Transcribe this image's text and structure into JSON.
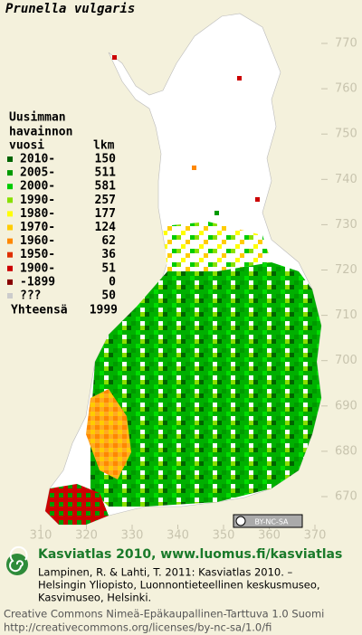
{
  "title": "Prunella vulgaris",
  "map": {
    "yticks": [
      770,
      760,
      750,
      740,
      730,
      720,
      710,
      700,
      690,
      680,
      670
    ],
    "xticks": [
      310,
      320,
      330,
      340,
      350,
      360,
      370
    ],
    "license_badge": "BY-NC-SA"
  },
  "legend": {
    "heading": [
      "Uusimman",
      "havainnon",
      "vuosi"
    ],
    "count_heading": "lkm",
    "rows": [
      {
        "label": "2010-",
        "count": 150,
        "color": "#006400"
      },
      {
        "label": "2005-",
        "count": 511,
        "color": "#009a00"
      },
      {
        "label": "2000-",
        "count": 581,
        "color": "#00cc00"
      },
      {
        "label": "1990-",
        "count": 257,
        "color": "#88e000"
      },
      {
        "label": "1980-",
        "count": 177,
        "color": "#ffff00"
      },
      {
        "label": "1970-",
        "count": 124,
        "color": "#ffcc00"
      },
      {
        "label": "1960-",
        "count": 62,
        "color": "#ff8800"
      },
      {
        "label": "1950-",
        "count": 36,
        "color": "#e03000"
      },
      {
        "label": "1900-",
        "count": 51,
        "color": "#cc0000"
      },
      {
        "label": "-1899",
        "count": 0,
        "color": "#880000"
      },
      {
        "label": "???",
        "count": 50,
        "color": "#cccccc"
      }
    ],
    "total_label": "Yhteensä",
    "total": 1999
  },
  "footer": {
    "heading": "Kasviatlas 2010, www.luomus.fi/kasviatlas",
    "citation": [
      "Lampinen, R. & Lahti, T. 2011: Kasviatlas 2010. –",
      "Helsingin Yliopisto, Luonnontieteellinen keskusmuseo,",
      "Kasvimuseo, Helsinki."
    ],
    "license": [
      "Creative Commons Nimeä-Epäkaupallinen-Tarttuva 1.0 Suomi",
      "http://creativecommons.org/licenses/by-nc-sa/1.0/fi"
    ]
  }
}
